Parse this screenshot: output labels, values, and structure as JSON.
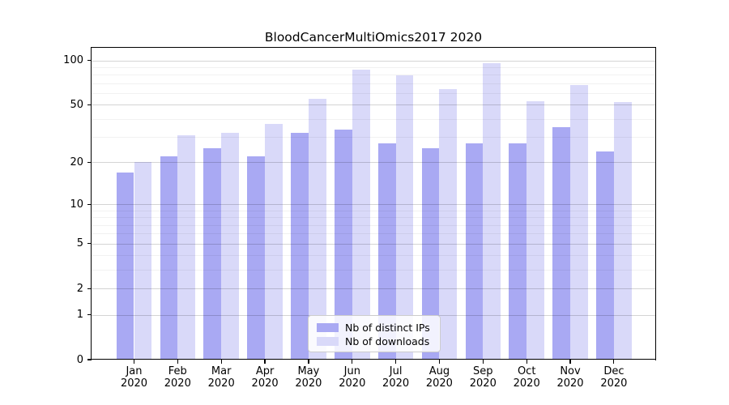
{
  "title": "BloodCancerMultiOmics2017 2020",
  "colors": {
    "distinct_ips_bar": "#a9a9f3",
    "downloads_bar": "#d9d9f9",
    "major_gridline": "rgba(0,0,0,0.17)",
    "minor_gridline": "rgba(0,0,0,0.055)",
    "spine": "#000000",
    "background": "#ffffff"
  },
  "chart_data": {
    "type": "bar",
    "title": "BloodCancerMultiOmics2017 2020",
    "categories": [
      "Jan",
      "Feb",
      "Mar",
      "Apr",
      "May",
      "Jun",
      "Jul",
      "Aug",
      "Sep",
      "Oct",
      "Nov",
      "Dec"
    ],
    "x_tick_year": "2020",
    "series": [
      {
        "name": "Nb of distinct IPs",
        "color": "#a9a9f3",
        "values": [
          17,
          22,
          25,
          22,
          32,
          34,
          27,
          25,
          27,
          27,
          35,
          24
        ]
      },
      {
        "name": "Nb of downloads",
        "color": "#d9d9f9",
        "values": [
          20,
          31,
          32,
          37,
          55,
          87,
          79,
          64,
          96,
          53,
          68,
          52
        ]
      }
    ],
    "xlabel": "",
    "ylabel": "",
    "y_scale": "log1p",
    "y_axis_max": 122,
    "y_ticks": [
      0,
      1,
      2,
      5,
      10,
      20,
      50,
      100
    ],
    "y_tick_labels": [
      "0",
      "1",
      "2",
      "5",
      "10",
      "20",
      "50",
      "100"
    ],
    "y_minor_gridlines": [
      3,
      4,
      6,
      7,
      8,
      9,
      30,
      40,
      60,
      70,
      80,
      90
    ],
    "grid": true,
    "legend_position": "lower center"
  }
}
